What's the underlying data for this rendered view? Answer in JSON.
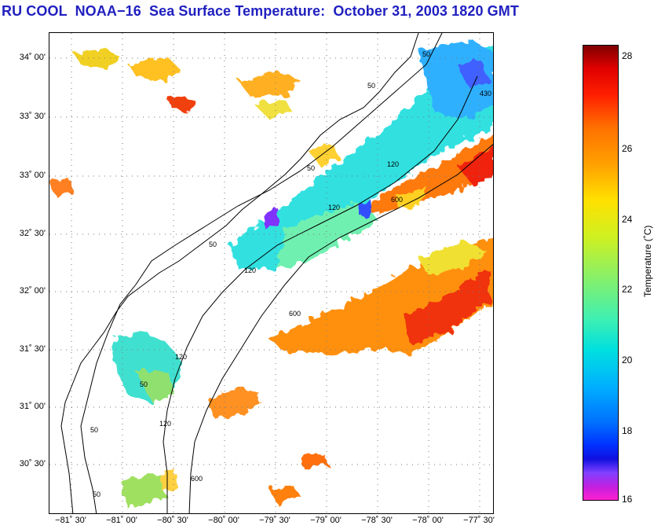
{
  "title": "RU COOL  NOAA−16  Sea Surface Temperature:  October 31, 2003 1820 GMT",
  "map": {
    "lat_labels": [
      "34˚ 00'",
      "33˚ 30'",
      "33˚ 00'",
      "32˚ 30'",
      "32˚ 00'",
      "31˚ 30'",
      "31˚ 00'",
      "30˚ 30'"
    ],
    "lon_labels": [
      "−81˚ 30'",
      "−81˚ 00'",
      "−80˚ 30'",
      "−80˚ 00'",
      "−79˚ 30'",
      "−79˚ 00'",
      "−78˚ 30'",
      "−78˚ 00'",
      "−77˚ 30'"
    ],
    "isobath_labels": [
      "50",
      "50",
      "50",
      "50",
      "120",
      "120",
      "120",
      "120",
      "120",
      "600",
      "600",
      "600",
      "430",
      "50",
      "50",
      "50"
    ]
  },
  "colorbar": {
    "label": "Temperature (˚C)",
    "ticks": [
      "28",
      "26",
      "24",
      "22",
      "20",
      "18",
      "16"
    ]
  },
  "colors": {
    "title": "#2020c0",
    "land": "#ffffff",
    "coast": "#000000"
  }
}
